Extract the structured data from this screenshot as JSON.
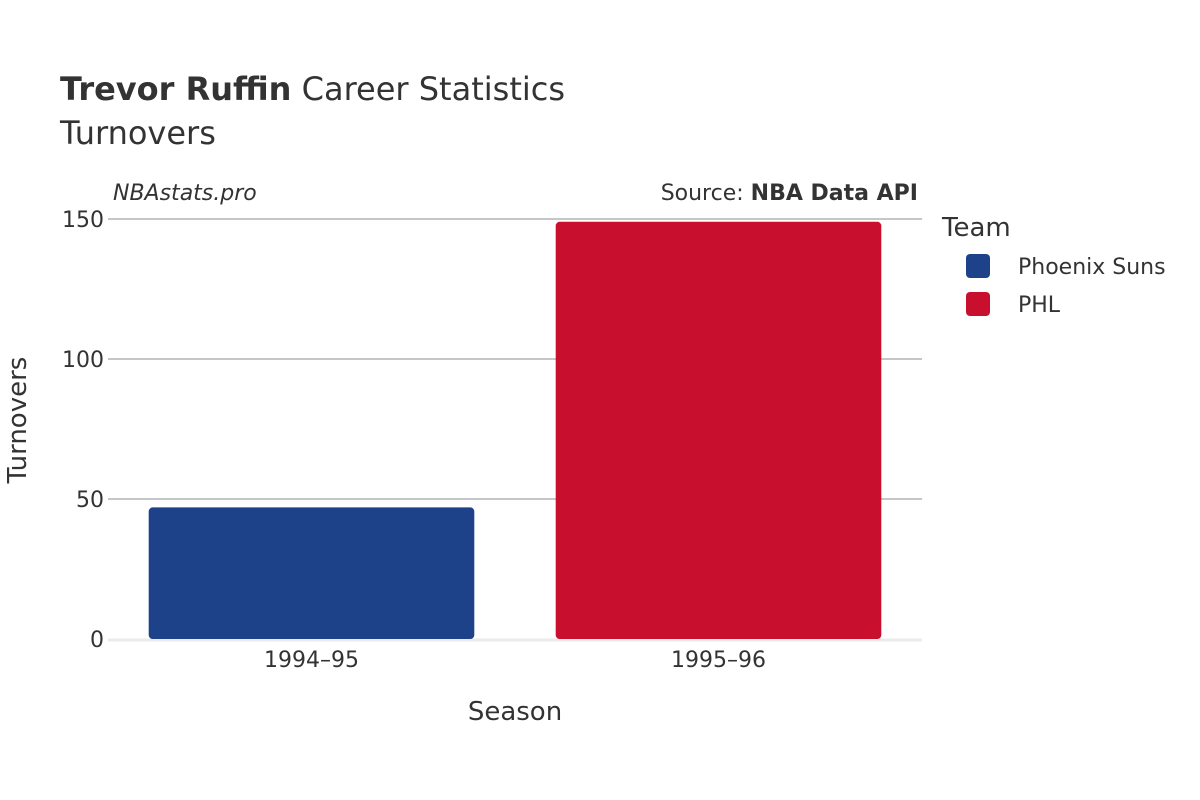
{
  "header": {
    "player_name": "Trevor Ruffin",
    "title_suffix": " Career Statistics",
    "subtitle": "Turnovers"
  },
  "watermark": "NBAstats.pro",
  "source": {
    "prefix": "Source: ",
    "name": "NBA Data API"
  },
  "legend": {
    "title": "Team"
  },
  "colors": {
    "phoenix_suns": "#1d428a",
    "phl": "#c8102e",
    "grid": "#8c8c8c",
    "zero_line": "#ebebeb"
  },
  "chart_data": {
    "type": "bar",
    "xlabel": "Season",
    "ylabel": "Turnovers",
    "ylim": [
      0,
      150
    ],
    "yticks": [
      0,
      50,
      100,
      150
    ],
    "categories": [
      "1994–95",
      "1995–96"
    ],
    "series": [
      {
        "name": "Phoenix Suns",
        "color": "#1d428a",
        "category": "1994–95",
        "value": 47
      },
      {
        "name": "PHL",
        "color": "#c8102e",
        "category": "1995–96",
        "value": 149
      }
    ],
    "grid": true,
    "legend_position": "top-right"
  }
}
